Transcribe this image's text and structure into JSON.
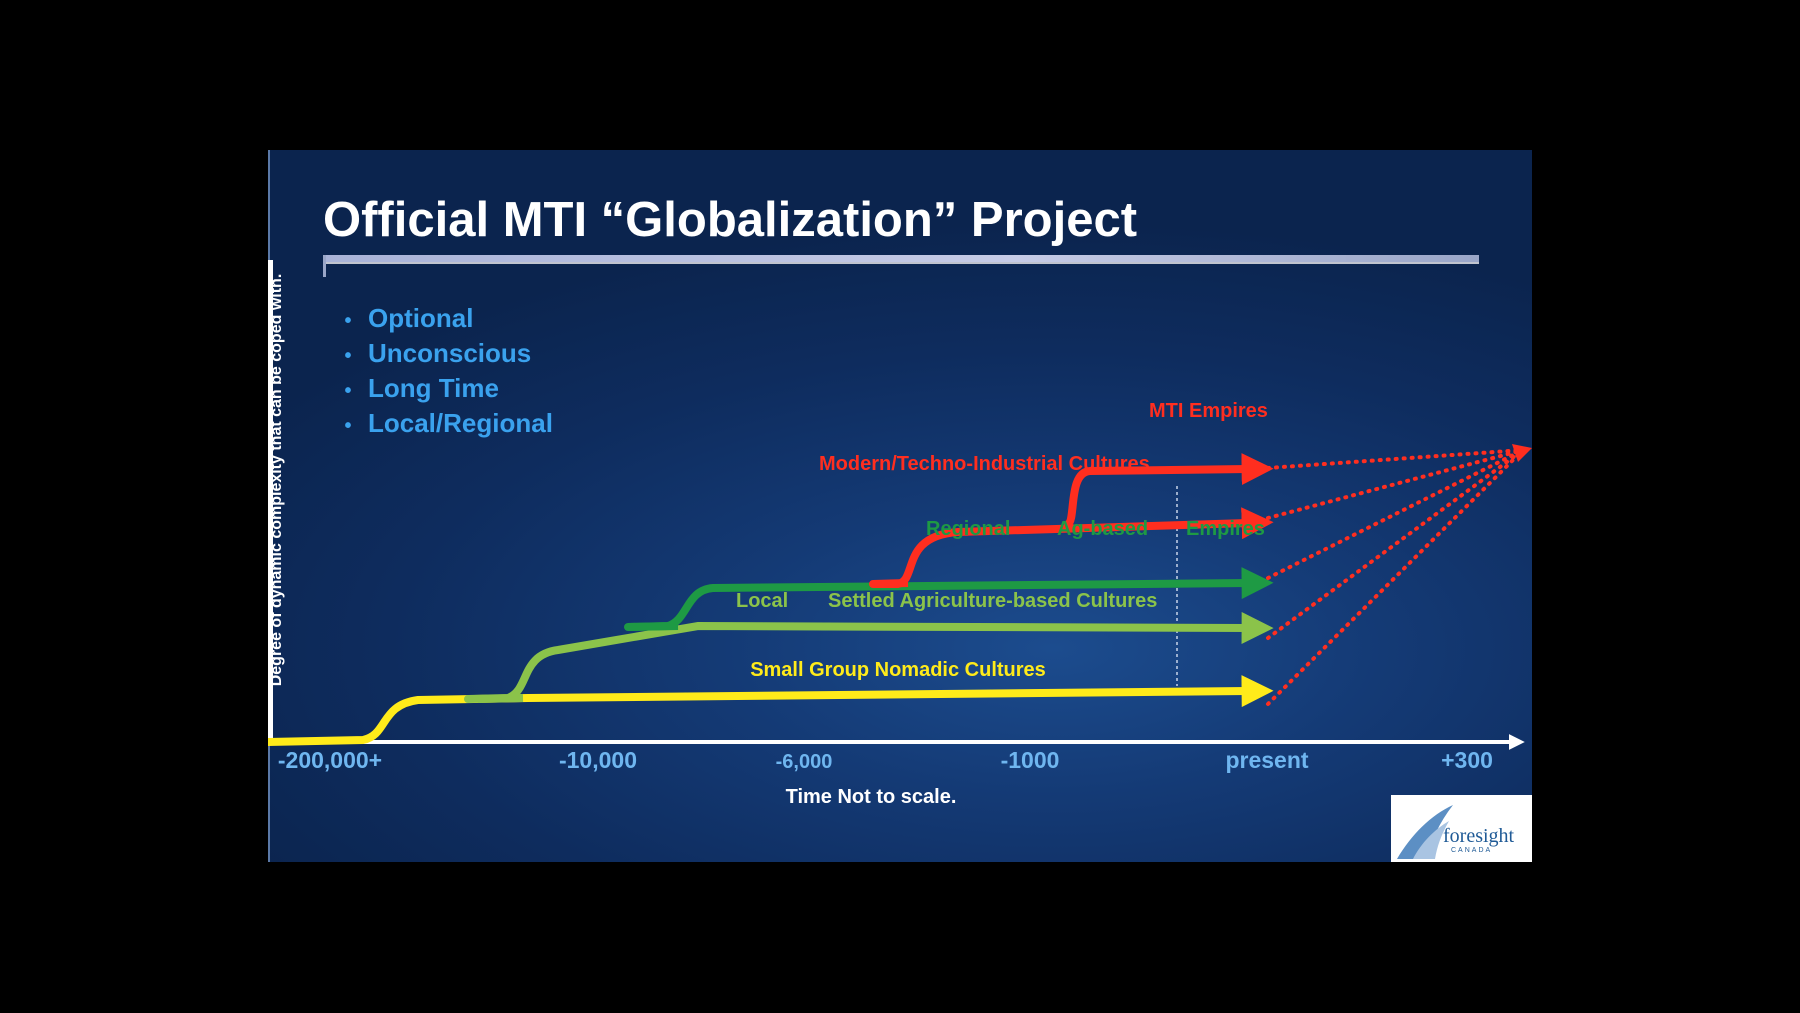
{
  "slide": {
    "title": "Official MTI “Globalization” Project",
    "bullets": [
      "Optional",
      "Unconscious",
      "Long Time",
      "Local/Regional"
    ],
    "y_axis_label": "Degree of dynamic complexity that can be coped with.",
    "x_axis_title": "Time Not to scale.",
    "colors": {
      "background": "#0e2c5e",
      "title": "#ffffff",
      "bullets": "#3aa2ee",
      "nomadic": "#ffeb1a",
      "settled_agriculture": "#8bc34a",
      "regional_ag_empires": "#1e9a44",
      "modern_industrial": "#ff2e1f"
    }
  },
  "chart_data": {
    "type": "diagram",
    "x_ticks": [
      "-200,000+",
      "-10,000",
      "-6,000",
      "-1000",
      "present",
      "+300"
    ],
    "stages": [
      {
        "name": "Small Group Nomadic Cultures",
        "color": "#ffeb1a"
      },
      {
        "name": "Settled Agriculture-based Cultures",
        "prefix": "Local",
        "color": "#8bc34a"
      },
      {
        "name": "Ag-based",
        "prefix": "Regional",
        "suffix": "Empires",
        "color": "#1e9a44"
      },
      {
        "name": "Modern/Techno-Industrial Cultures",
        "color": "#ff2e1f"
      },
      {
        "name": "MTI Empires",
        "color": "#ff2e1f"
      }
    ]
  },
  "logo": {
    "word": "foresight",
    "sub": "CANADA"
  }
}
